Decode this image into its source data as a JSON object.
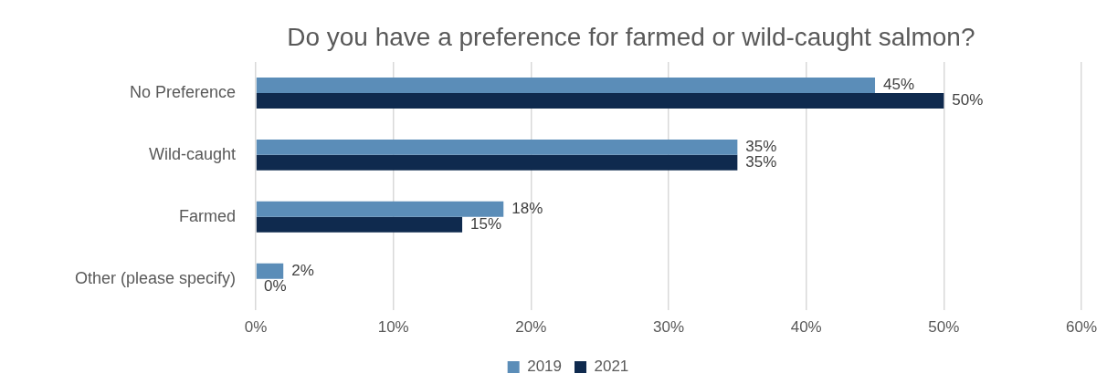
{
  "chart_data": {
    "type": "bar",
    "orientation": "horizontal",
    "title": "Do you have a preference for farmed or wild-caught salmon?",
    "categories": [
      "No Preference",
      "Wild-caught",
      "Farmed",
      "Other (please specify)"
    ],
    "series": [
      {
        "name": "2019",
        "color": "#5b8db8",
        "values": [
          45,
          35,
          18,
          2
        ],
        "value_labels": [
          "45%",
          "35%",
          "18%",
          "2%"
        ]
      },
      {
        "name": "2021",
        "color": "#0f2a4e",
        "values": [
          50,
          35,
          15,
          0
        ],
        "value_labels": [
          "50%",
          "35%",
          "15%",
          "0%"
        ]
      }
    ],
    "xlim": [
      0,
      60
    ],
    "xticks": [
      {
        "value": 0,
        "label": "0%"
      },
      {
        "value": 10,
        "label": "10%"
      },
      {
        "value": 20,
        "label": "20%"
      },
      {
        "value": 30,
        "label": "30%"
      },
      {
        "value": 40,
        "label": "40%"
      },
      {
        "value": 50,
        "label": "50%"
      },
      {
        "value": 60,
        "label": "60%"
      }
    ],
    "grid": "x",
    "legend": "bottom"
  }
}
